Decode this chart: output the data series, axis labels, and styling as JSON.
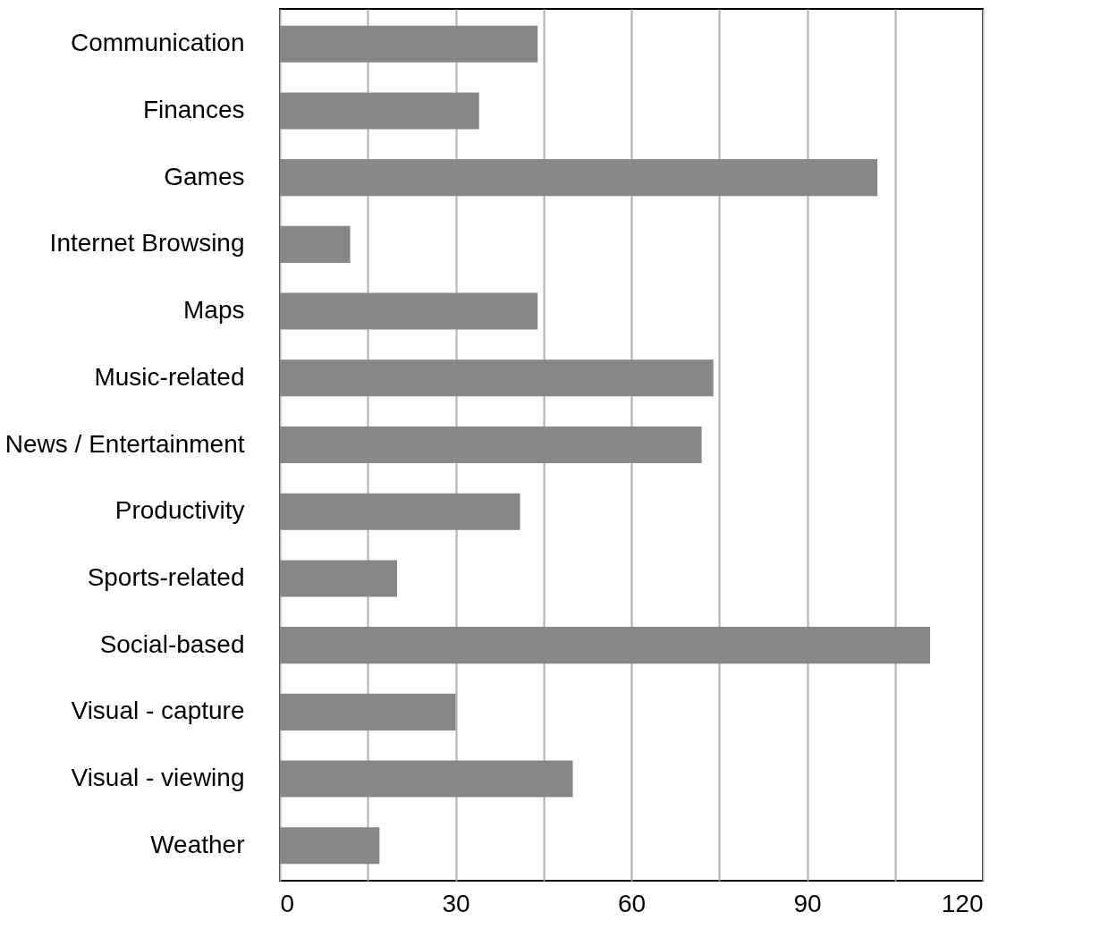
{
  "chart_data": {
    "type": "bar",
    "orientation": "horizontal",
    "categories": [
      "Communication",
      "Finances",
      "Games",
      "Internet Browsing",
      "Maps",
      "Music-related",
      "News / Entertainment",
      "Productivity",
      "Sports-related",
      "Social-based",
      "Visual - capture",
      "Visual - viewing",
      "Weather"
    ],
    "values": [
      44,
      34,
      102,
      12,
      44,
      74,
      72,
      41,
      20,
      111,
      30,
      50,
      17
    ],
    "color": "#868786",
    "xlim": [
      0,
      120
    ],
    "xticks": [
      0,
      {
        "value": 15,
        "label": null
      },
      30,
      {
        "value": 45,
        "label": null
      },
      60,
      {
        "value": 75,
        "label": null
      },
      90,
      {
        "value": 105,
        "label": null
      },
      120
    ],
    "grid": "x"
  }
}
